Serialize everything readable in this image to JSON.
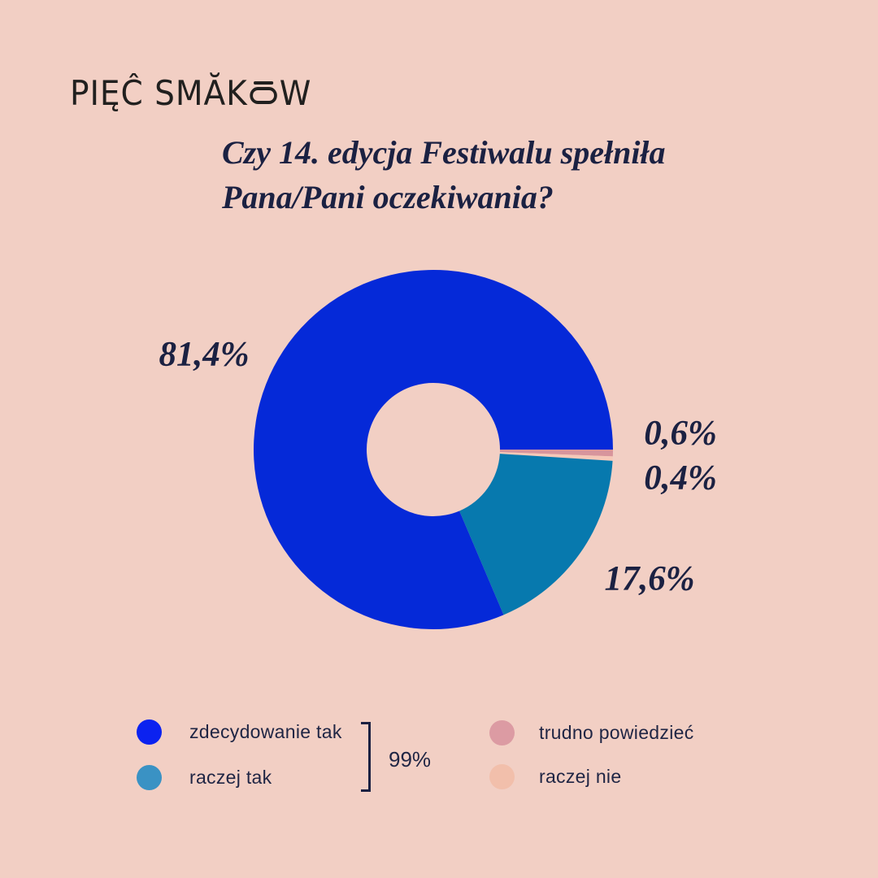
{
  "logo": {
    "part1": "PIĘĈ SMĂK",
    "part2": "W"
  },
  "title": {
    "line1": "Czy 14. edycja Festiwalu spełniła",
    "line2": "Pana/Pani oczekiwania?"
  },
  "chart_data": {
    "type": "pie",
    "variant": "donut",
    "title": "Czy 14. edycja Festiwalu spełniła Pana/Pani oczekiwania?",
    "start_angle_deg": 0,
    "direction": "clockwise",
    "slices": [
      {
        "label": "trudno powiedzieć",
        "value": 0.6,
        "display": "0,6%",
        "color": "#d8959c"
      },
      {
        "label": "raczej nie",
        "value": 0.4,
        "display": "0,4%",
        "color": "#f6c8b8"
      },
      {
        "label": "raczej tak",
        "value": 17.6,
        "display": "17,6%",
        "color": "#0779ae"
      },
      {
        "label": "zdecydowanie tak",
        "value": 81.4,
        "display": "81,4%",
        "color": "#0529d8"
      }
    ],
    "combined_annotation": {
      "label": "99%",
      "covers": [
        "zdecydowanie tak",
        "raczej tak"
      ]
    }
  },
  "legend": {
    "left": [
      {
        "label": "zdecydowanie tak",
        "color": "#0b22f0"
      },
      {
        "label": "raczej tak",
        "color": "#3a92c4"
      }
    ],
    "right": [
      {
        "label": "trudno powiedzieć",
        "color": "#dc9ba3"
      },
      {
        "label": "raczej nie",
        "color": "#f2bfab"
      }
    ],
    "combined_label": "99%"
  },
  "colors": {
    "background": "#f2cfc4",
    "text": "#1b2142",
    "logo": "#21201f"
  }
}
